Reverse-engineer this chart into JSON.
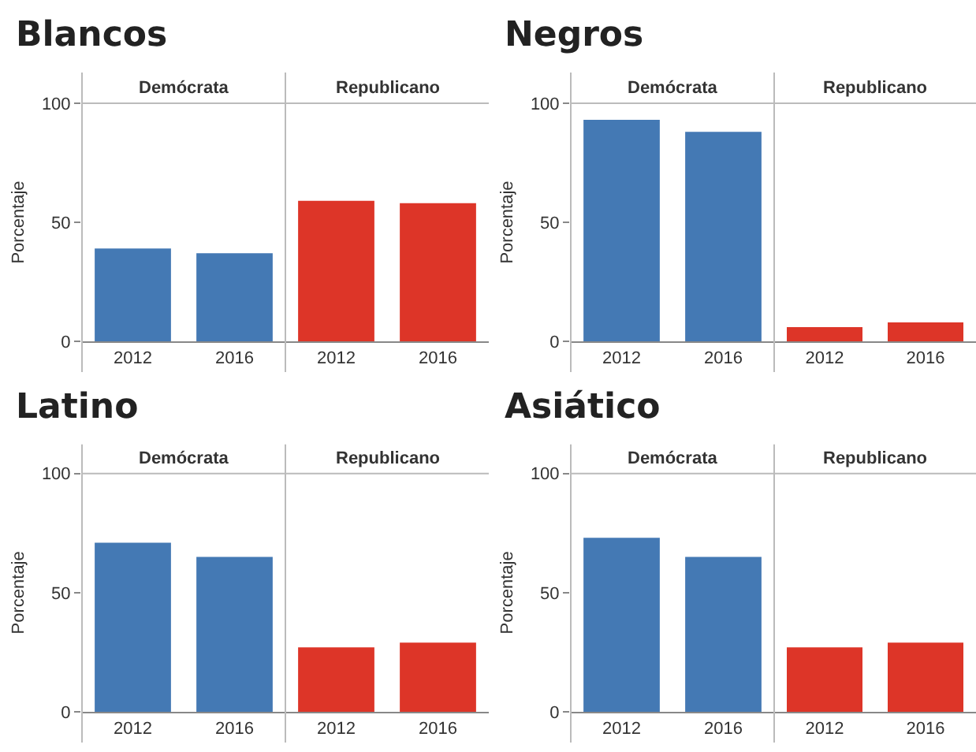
{
  "chart_data": [
    {
      "type": "bar",
      "title": "Blancos",
      "subtitle": "Demócrata",
      "ylabel": "Porcentaje",
      "categories": [
        "2012",
        "2016"
      ],
      "values": [
        39,
        37
      ],
      "color": "#4479b4",
      "ylim": [
        0,
        100
      ],
      "yticks": [
        0,
        50,
        100
      ],
      "grid": false
    },
    {
      "type": "bar",
      "subtitle": "Republicano",
      "categories": [
        "2012",
        "2016"
      ],
      "values": [
        59,
        58
      ],
      "color": "#dd3528",
      "ylim": [
        0,
        100
      ],
      "tick_labels": "x",
      "grid": false
    },
    {
      "type": "bar",
      "title": "Negros",
      "subtitle": "Demócrata",
      "ylabel": "Porcentaje",
      "categories": [
        "2012",
        "2016"
      ],
      "values": [
        93,
        88
      ],
      "color": "#4479b4",
      "ylim": [
        0,
        100
      ],
      "yticks": [
        0,
        50,
        100
      ],
      "grid": false
    },
    {
      "type": "bar",
      "subtitle": "Republicano",
      "categories": [
        "2012",
        "2016"
      ],
      "values": [
        6,
        8
      ],
      "color": "#dd3528",
      "ylim": [
        0,
        100
      ],
      "tick_labels": "x",
      "grid": false
    },
    {
      "type": "bar",
      "title": "Latino",
      "subtitle": "Demócrata",
      "ylabel": "Porcentaje",
      "categories": [
        "2012",
        "2016"
      ],
      "values": [
        71,
        65
      ],
      "color": "#4479b4",
      "ylim": [
        0,
        100
      ],
      "yticks": [
        0,
        50,
        100
      ],
      "grid": false
    },
    {
      "type": "bar",
      "subtitle": "Republicano",
      "categories": [
        "2012",
        "2016"
      ],
      "values": [
        27,
        29
      ],
      "color": "#dd3528",
      "ylim": [
        0,
        100
      ],
      "tick_labels": "x",
      "grid": false
    },
    {
      "type": "bar",
      "title": "Asiático",
      "subtitle": "Demócrata",
      "ylabel": "Porcentaje",
      "categories": [
        "2012",
        "2016"
      ],
      "values": [
        73,
        65
      ],
      "color": "#4479b4",
      "ylim": [
        0,
        100
      ],
      "yticks": [
        0,
        50,
        100
      ],
      "grid": false
    },
    {
      "type": "bar",
      "subtitle": "Republicano",
      "categories": [
        "2012",
        "2016"
      ],
      "values": [
        27,
        29
      ],
      "color": "#dd3528",
      "ylim": [
        0,
        100
      ],
      "tick_labels": "x",
      "grid": false
    }
  ]
}
